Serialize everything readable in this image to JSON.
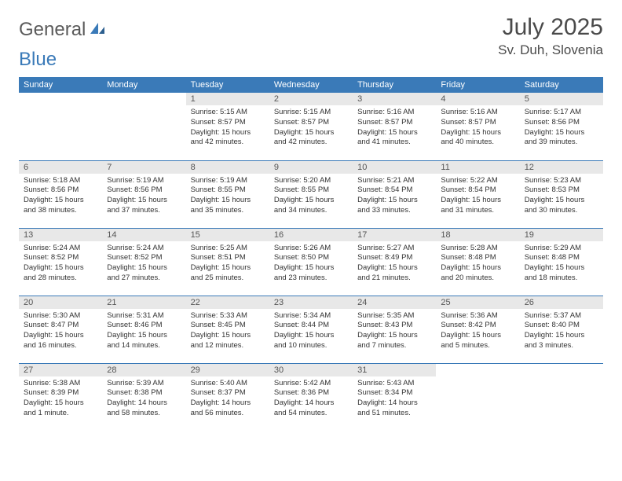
{
  "brand": {
    "word1": "General",
    "word2": "Blue"
  },
  "title": "July 2025",
  "location": "Sv. Duh, Slovenia",
  "colors": {
    "accent": "#3a7ab8",
    "dayNumBg": "#e8e8e8",
    "text": "#333333",
    "headerText": "#ffffff",
    "background": "#ffffff"
  },
  "dayNames": [
    "Sunday",
    "Monday",
    "Tuesday",
    "Wednesday",
    "Thursday",
    "Friday",
    "Saturday"
  ],
  "weeks": [
    [
      null,
      null,
      {
        "n": "1",
        "sr": "Sunrise: 5:15 AM",
        "ss": "Sunset: 8:57 PM",
        "dl": "Daylight: 15 hours and 42 minutes."
      },
      {
        "n": "2",
        "sr": "Sunrise: 5:15 AM",
        "ss": "Sunset: 8:57 PM",
        "dl": "Daylight: 15 hours and 42 minutes."
      },
      {
        "n": "3",
        "sr": "Sunrise: 5:16 AM",
        "ss": "Sunset: 8:57 PM",
        "dl": "Daylight: 15 hours and 41 minutes."
      },
      {
        "n": "4",
        "sr": "Sunrise: 5:16 AM",
        "ss": "Sunset: 8:57 PM",
        "dl": "Daylight: 15 hours and 40 minutes."
      },
      {
        "n": "5",
        "sr": "Sunrise: 5:17 AM",
        "ss": "Sunset: 8:56 PM",
        "dl": "Daylight: 15 hours and 39 minutes."
      }
    ],
    [
      {
        "n": "6",
        "sr": "Sunrise: 5:18 AM",
        "ss": "Sunset: 8:56 PM",
        "dl": "Daylight: 15 hours and 38 minutes."
      },
      {
        "n": "7",
        "sr": "Sunrise: 5:19 AM",
        "ss": "Sunset: 8:56 PM",
        "dl": "Daylight: 15 hours and 37 minutes."
      },
      {
        "n": "8",
        "sr": "Sunrise: 5:19 AM",
        "ss": "Sunset: 8:55 PM",
        "dl": "Daylight: 15 hours and 35 minutes."
      },
      {
        "n": "9",
        "sr": "Sunrise: 5:20 AM",
        "ss": "Sunset: 8:55 PM",
        "dl": "Daylight: 15 hours and 34 minutes."
      },
      {
        "n": "10",
        "sr": "Sunrise: 5:21 AM",
        "ss": "Sunset: 8:54 PM",
        "dl": "Daylight: 15 hours and 33 minutes."
      },
      {
        "n": "11",
        "sr": "Sunrise: 5:22 AM",
        "ss": "Sunset: 8:54 PM",
        "dl": "Daylight: 15 hours and 31 minutes."
      },
      {
        "n": "12",
        "sr": "Sunrise: 5:23 AM",
        "ss": "Sunset: 8:53 PM",
        "dl": "Daylight: 15 hours and 30 minutes."
      }
    ],
    [
      {
        "n": "13",
        "sr": "Sunrise: 5:24 AM",
        "ss": "Sunset: 8:52 PM",
        "dl": "Daylight: 15 hours and 28 minutes."
      },
      {
        "n": "14",
        "sr": "Sunrise: 5:24 AM",
        "ss": "Sunset: 8:52 PM",
        "dl": "Daylight: 15 hours and 27 minutes."
      },
      {
        "n": "15",
        "sr": "Sunrise: 5:25 AM",
        "ss": "Sunset: 8:51 PM",
        "dl": "Daylight: 15 hours and 25 minutes."
      },
      {
        "n": "16",
        "sr": "Sunrise: 5:26 AM",
        "ss": "Sunset: 8:50 PM",
        "dl": "Daylight: 15 hours and 23 minutes."
      },
      {
        "n": "17",
        "sr": "Sunrise: 5:27 AM",
        "ss": "Sunset: 8:49 PM",
        "dl": "Daylight: 15 hours and 21 minutes."
      },
      {
        "n": "18",
        "sr": "Sunrise: 5:28 AM",
        "ss": "Sunset: 8:48 PM",
        "dl": "Daylight: 15 hours and 20 minutes."
      },
      {
        "n": "19",
        "sr": "Sunrise: 5:29 AM",
        "ss": "Sunset: 8:48 PM",
        "dl": "Daylight: 15 hours and 18 minutes."
      }
    ],
    [
      {
        "n": "20",
        "sr": "Sunrise: 5:30 AM",
        "ss": "Sunset: 8:47 PM",
        "dl": "Daylight: 15 hours and 16 minutes."
      },
      {
        "n": "21",
        "sr": "Sunrise: 5:31 AM",
        "ss": "Sunset: 8:46 PM",
        "dl": "Daylight: 15 hours and 14 minutes."
      },
      {
        "n": "22",
        "sr": "Sunrise: 5:33 AM",
        "ss": "Sunset: 8:45 PM",
        "dl": "Daylight: 15 hours and 12 minutes."
      },
      {
        "n": "23",
        "sr": "Sunrise: 5:34 AM",
        "ss": "Sunset: 8:44 PM",
        "dl": "Daylight: 15 hours and 10 minutes."
      },
      {
        "n": "24",
        "sr": "Sunrise: 5:35 AM",
        "ss": "Sunset: 8:43 PM",
        "dl": "Daylight: 15 hours and 7 minutes."
      },
      {
        "n": "25",
        "sr": "Sunrise: 5:36 AM",
        "ss": "Sunset: 8:42 PM",
        "dl": "Daylight: 15 hours and 5 minutes."
      },
      {
        "n": "26",
        "sr": "Sunrise: 5:37 AM",
        "ss": "Sunset: 8:40 PM",
        "dl": "Daylight: 15 hours and 3 minutes."
      }
    ],
    [
      {
        "n": "27",
        "sr": "Sunrise: 5:38 AM",
        "ss": "Sunset: 8:39 PM",
        "dl": "Daylight: 15 hours and 1 minute."
      },
      {
        "n": "28",
        "sr": "Sunrise: 5:39 AM",
        "ss": "Sunset: 8:38 PM",
        "dl": "Daylight: 14 hours and 58 minutes."
      },
      {
        "n": "29",
        "sr": "Sunrise: 5:40 AM",
        "ss": "Sunset: 8:37 PM",
        "dl": "Daylight: 14 hours and 56 minutes."
      },
      {
        "n": "30",
        "sr": "Sunrise: 5:42 AM",
        "ss": "Sunset: 8:36 PM",
        "dl": "Daylight: 14 hours and 54 minutes."
      },
      {
        "n": "31",
        "sr": "Sunrise: 5:43 AM",
        "ss": "Sunset: 8:34 PM",
        "dl": "Daylight: 14 hours and 51 minutes."
      },
      null,
      null
    ]
  ]
}
